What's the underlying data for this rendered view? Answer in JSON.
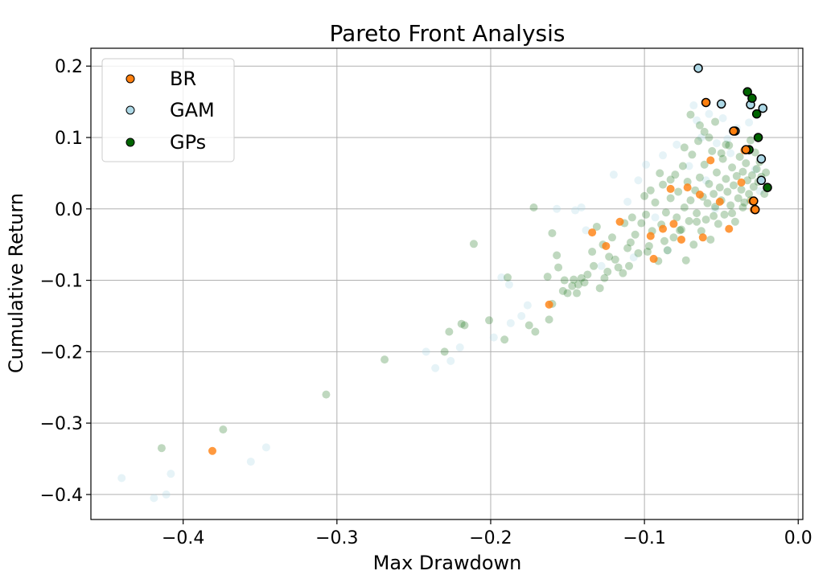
{
  "chart_data": {
    "type": "scatter",
    "title": "Pareto Front Analysis",
    "xlabel": "Max Drawdown",
    "ylabel": "Cumulative Return",
    "xlim": [
      -0.46,
      0.003
    ],
    "ylim": [
      -0.435,
      0.225
    ],
    "xticks": [
      -0.4,
      -0.3,
      -0.2,
      -0.1,
      0.0
    ],
    "xtick_labels": [
      "−0.4",
      "−0.3",
      "−0.2",
      "−0.1",
      "0.0"
    ],
    "yticks": [
      0.2,
      0.1,
      0.0,
      -0.1,
      -0.2,
      -0.3,
      -0.4
    ],
    "ytick_labels": [
      "0.2",
      "0.1",
      "0.0",
      "−0.1",
      "−0.2",
      "−0.3",
      "−0.4"
    ],
    "grid": true,
    "legend_position": "top-left",
    "series": [
      {
        "name": "BR",
        "color": "#ff7f0e",
        "points": [
          [
            -0.381,
            -0.339
          ],
          [
            -0.162,
            -0.134
          ],
          [
            -0.134,
            -0.033
          ],
          [
            -0.116,
            -0.018
          ],
          [
            -0.125,
            -0.052
          ],
          [
            -0.096,
            -0.038
          ],
          [
            -0.088,
            -0.028
          ],
          [
            -0.081,
            -0.021
          ],
          [
            -0.094,
            -0.07
          ],
          [
            -0.083,
            0.028
          ],
          [
            -0.072,
            0.03
          ],
          [
            -0.057,
            0.068
          ],
          [
            -0.062,
            -0.04
          ],
          [
            -0.045,
            -0.028
          ],
          [
            -0.037,
            0.037
          ],
          [
            -0.03,
            0.011
          ],
          [
            -0.029,
            -0.001
          ],
          [
            -0.035,
            0.082
          ],
          [
            -0.064,
            0.02
          ],
          [
            -0.051,
            0.01
          ],
          [
            -0.076,
            -0.043
          ]
        ],
        "pareto": [
          [
            -0.06,
            0.149
          ],
          [
            -0.042,
            0.109
          ],
          [
            -0.034,
            0.083
          ],
          [
            -0.029,
            0.011
          ],
          [
            -0.028,
            -0.001
          ]
        ]
      },
      {
        "name": "GAM",
        "color": "#add8e6",
        "points": [
          [
            -0.44,
            -0.377
          ],
          [
            -0.419,
            -0.405
          ],
          [
            -0.411,
            -0.4
          ],
          [
            -0.408,
            -0.371
          ],
          [
            -0.346,
            -0.334
          ],
          [
            -0.356,
            -0.354
          ],
          [
            -0.236,
            -0.223
          ],
          [
            -0.242,
            -0.2
          ],
          [
            -0.226,
            -0.213
          ],
          [
            -0.22,
            -0.194
          ],
          [
            -0.198,
            -0.18
          ],
          [
            -0.187,
            -0.16
          ],
          [
            -0.193,
            -0.096
          ],
          [
            -0.188,
            -0.106
          ],
          [
            -0.18,
            -0.15
          ],
          [
            -0.176,
            -0.135
          ],
          [
            -0.157,
            0.0
          ],
          [
            -0.145,
            -0.002
          ],
          [
            -0.141,
            0.002
          ],
          [
            -0.138,
            -0.03
          ],
          [
            -0.12,
            0.048
          ],
          [
            -0.111,
            0.01
          ],
          [
            -0.104,
            0.04
          ],
          [
            -0.099,
            0.062
          ],
          [
            -0.093,
            -0.012
          ],
          [
            -0.088,
            0.075
          ],
          [
            -0.079,
            0.09
          ],
          [
            -0.068,
            0.145
          ],
          [
            -0.066,
            0.124
          ],
          [
            -0.063,
            0.1
          ],
          [
            -0.058,
            0.133
          ],
          [
            -0.053,
            0.092
          ],
          [
            -0.049,
            0.127
          ],
          [
            -0.046,
            0.098
          ],
          [
            -0.044,
            0.078
          ],
          [
            -0.04,
            0.113
          ],
          [
            -0.032,
            0.121
          ],
          [
            -0.028,
            0.055
          ],
          [
            -0.025,
            0.025
          ],
          [
            -0.071,
            0.06
          ],
          [
            -0.06,
            0.04
          ],
          [
            -0.054,
            0.0
          ],
          [
            -0.085,
            -0.058
          ],
          [
            -0.107,
            -0.068
          ],
          [
            -0.128,
            -0.08
          ]
        ],
        "pareto": [
          [
            -0.065,
            0.197
          ],
          [
            -0.05,
            0.147
          ],
          [
            -0.031,
            0.146
          ],
          [
            -0.023,
            0.141
          ],
          [
            -0.024,
            0.07
          ],
          [
            -0.024,
            0.04
          ],
          [
            -0.041,
            0.109
          ]
        ]
      },
      {
        "name": "GPs",
        "color": "#006400",
        "points": [
          [
            -0.414,
            -0.335
          ],
          [
            -0.374,
            -0.309
          ],
          [
            -0.307,
            -0.26
          ],
          [
            -0.269,
            -0.211
          ],
          [
            -0.23,
            -0.2
          ],
          [
            -0.227,
            -0.172
          ],
          [
            -0.219,
            -0.161
          ],
          [
            -0.217,
            -0.163
          ],
          [
            -0.211,
            -0.049
          ],
          [
            -0.201,
            -0.156
          ],
          [
            -0.191,
            -0.183
          ],
          [
            -0.189,
            -0.096
          ],
          [
            -0.175,
            -0.163
          ],
          [
            -0.171,
            -0.172
          ],
          [
            -0.172,
            0.002
          ],
          [
            -0.163,
            -0.095
          ],
          [
            -0.162,
            -0.155
          ],
          [
            -0.16,
            -0.133
          ],
          [
            -0.16,
            -0.034
          ],
          [
            -0.157,
            -0.065
          ],
          [
            -0.156,
            -0.082
          ],
          [
            -0.153,
            -0.115
          ],
          [
            -0.15,
            -0.118
          ],
          [
            -0.146,
            -0.099
          ],
          [
            -0.143,
            -0.106
          ],
          [
            -0.141,
            -0.097
          ],
          [
            -0.137,
            -0.092
          ],
          [
            -0.133,
            -0.08
          ],
          [
            -0.131,
            -0.025
          ],
          [
            -0.129,
            -0.111
          ],
          [
            -0.126,
            -0.097
          ],
          [
            -0.123,
            -0.067
          ],
          [
            -0.121,
            -0.04
          ],
          [
            -0.119,
            -0.071
          ],
          [
            -0.117,
            -0.082
          ],
          [
            -0.114,
            -0.09
          ],
          [
            -0.111,
            -0.055
          ],
          [
            -0.109,
            -0.047
          ],
          [
            -0.106,
            -0.036
          ],
          [
            -0.104,
            -0.062
          ],
          [
            -0.102,
            -0.02
          ],
          [
            -0.1,
            0.018
          ],
          [
            -0.099,
            -0.008
          ],
          [
            -0.097,
            -0.052
          ],
          [
            -0.095,
            -0.031
          ],
          [
            -0.093,
            0.009
          ],
          [
            -0.091,
            -0.073
          ],
          [
            -0.089,
            -0.022
          ],
          [
            -0.088,
            0.034
          ],
          [
            -0.086,
            -0.005
          ],
          [
            -0.085,
            -0.058
          ],
          [
            -0.083,
            0.015
          ],
          [
            -0.081,
            -0.04
          ],
          [
            -0.08,
            0.048
          ],
          [
            -0.079,
            -0.012
          ],
          [
            -0.078,
            0.024
          ],
          [
            -0.076,
            -0.029
          ],
          [
            -0.075,
            0.06
          ],
          [
            -0.074,
            0.002
          ],
          [
            -0.073,
            -0.072
          ],
          [
            -0.072,
            0.038
          ],
          [
            -0.071,
            -0.017
          ],
          [
            -0.07,
            0.012
          ],
          [
            -0.069,
            0.076
          ],
          [
            -0.068,
            -0.05
          ],
          [
            -0.067,
            0.026
          ],
          [
            -0.066,
            -0.006
          ],
          [
            -0.065,
            0.095
          ],
          [
            -0.064,
            0.044
          ],
          [
            -0.063,
            -0.031
          ],
          [
            -0.062,
            0.017
          ],
          [
            -0.061,
            0.062
          ],
          [
            -0.06,
            -0.015
          ],
          [
            -0.059,
            0.008
          ],
          [
            -0.058,
            0.035
          ],
          [
            -0.057,
            -0.043
          ],
          [
            -0.056,
            0.081
          ],
          [
            -0.055,
            0.021
          ],
          [
            -0.054,
            0.003
          ],
          [
            -0.053,
            0.051
          ],
          [
            -0.052,
            -0.021
          ],
          [
            -0.051,
            0.03
          ],
          [
            -0.05,
            0.012
          ],
          [
            -0.049,
            0.07
          ],
          [
            -0.048,
            -0.008
          ],
          [
            -0.047,
            0.042
          ],
          [
            -0.046,
            0.024
          ],
          [
            -0.045,
            0.089
          ],
          [
            -0.044,
            0.005
          ],
          [
            -0.043,
            0.058
          ],
          [
            -0.042,
            0.033
          ],
          [
            -0.041,
            -0.018
          ],
          [
            -0.04,
            0.046
          ],
          [
            -0.039,
            0.015
          ],
          [
            -0.038,
            0.073
          ],
          [
            -0.037,
            0.027
          ],
          [
            -0.036,
            0.052
          ],
          [
            -0.035,
            0.009
          ],
          [
            -0.034,
            0.064
          ],
          [
            -0.033,
            0.04
          ],
          [
            -0.032,
            0.021
          ],
          [
            -0.031,
            0.096
          ],
          [
            -0.03,
            0.047
          ],
          [
            -0.029,
            0.031
          ],
          [
            -0.028,
            0.079
          ],
          [
            -0.027,
            0.056
          ],
          [
            -0.026,
            0.038
          ],
          [
            -0.025,
            0.066
          ],
          [
            -0.024,
            0.045
          ],
          [
            -0.022,
            0.021
          ],
          [
            -0.021,
            0.051
          ],
          [
            -0.058,
            0.1
          ],
          [
            -0.064,
            0.117
          ],
          [
            -0.07,
            0.132
          ],
          [
            -0.054,
            0.122
          ],
          [
            -0.047,
            0.09
          ],
          [
            -0.083,
            0.041
          ],
          [
            -0.09,
            0.05
          ],
          [
            -0.096,
            0.026
          ],
          [
            -0.108,
            -0.012
          ],
          [
            -0.113,
            -0.02
          ],
          [
            -0.127,
            -0.05
          ],
          [
            -0.134,
            -0.06
          ],
          [
            -0.147,
            -0.108
          ],
          [
            -0.152,
            -0.1
          ],
          [
            -0.144,
            -0.118
          ],
          [
            -0.139,
            -0.103
          ],
          [
            -0.124,
            -0.088
          ],
          [
            -0.11,
            -0.08
          ],
          [
            -0.098,
            -0.06
          ],
          [
            -0.087,
            -0.045
          ],
          [
            -0.077,
            -0.03
          ],
          [
            -0.066,
            -0.018
          ],
          [
            -0.055,
            -0.01
          ],
          [
            -0.043,
            -0.006
          ],
          [
            -0.036,
            0.002
          ],
          [
            -0.031,
            0.012
          ],
          [
            -0.074,
            0.086
          ],
          [
            -0.061,
            0.108
          ],
          [
            -0.05,
            0.078
          ]
        ],
        "pareto": [
          [
            -0.033,
            0.164
          ],
          [
            -0.03,
            0.155
          ],
          [
            -0.027,
            0.133
          ],
          [
            -0.026,
            0.1
          ],
          [
            -0.032,
            0.083
          ],
          [
            -0.02,
            0.03
          ]
        ]
      }
    ]
  }
}
